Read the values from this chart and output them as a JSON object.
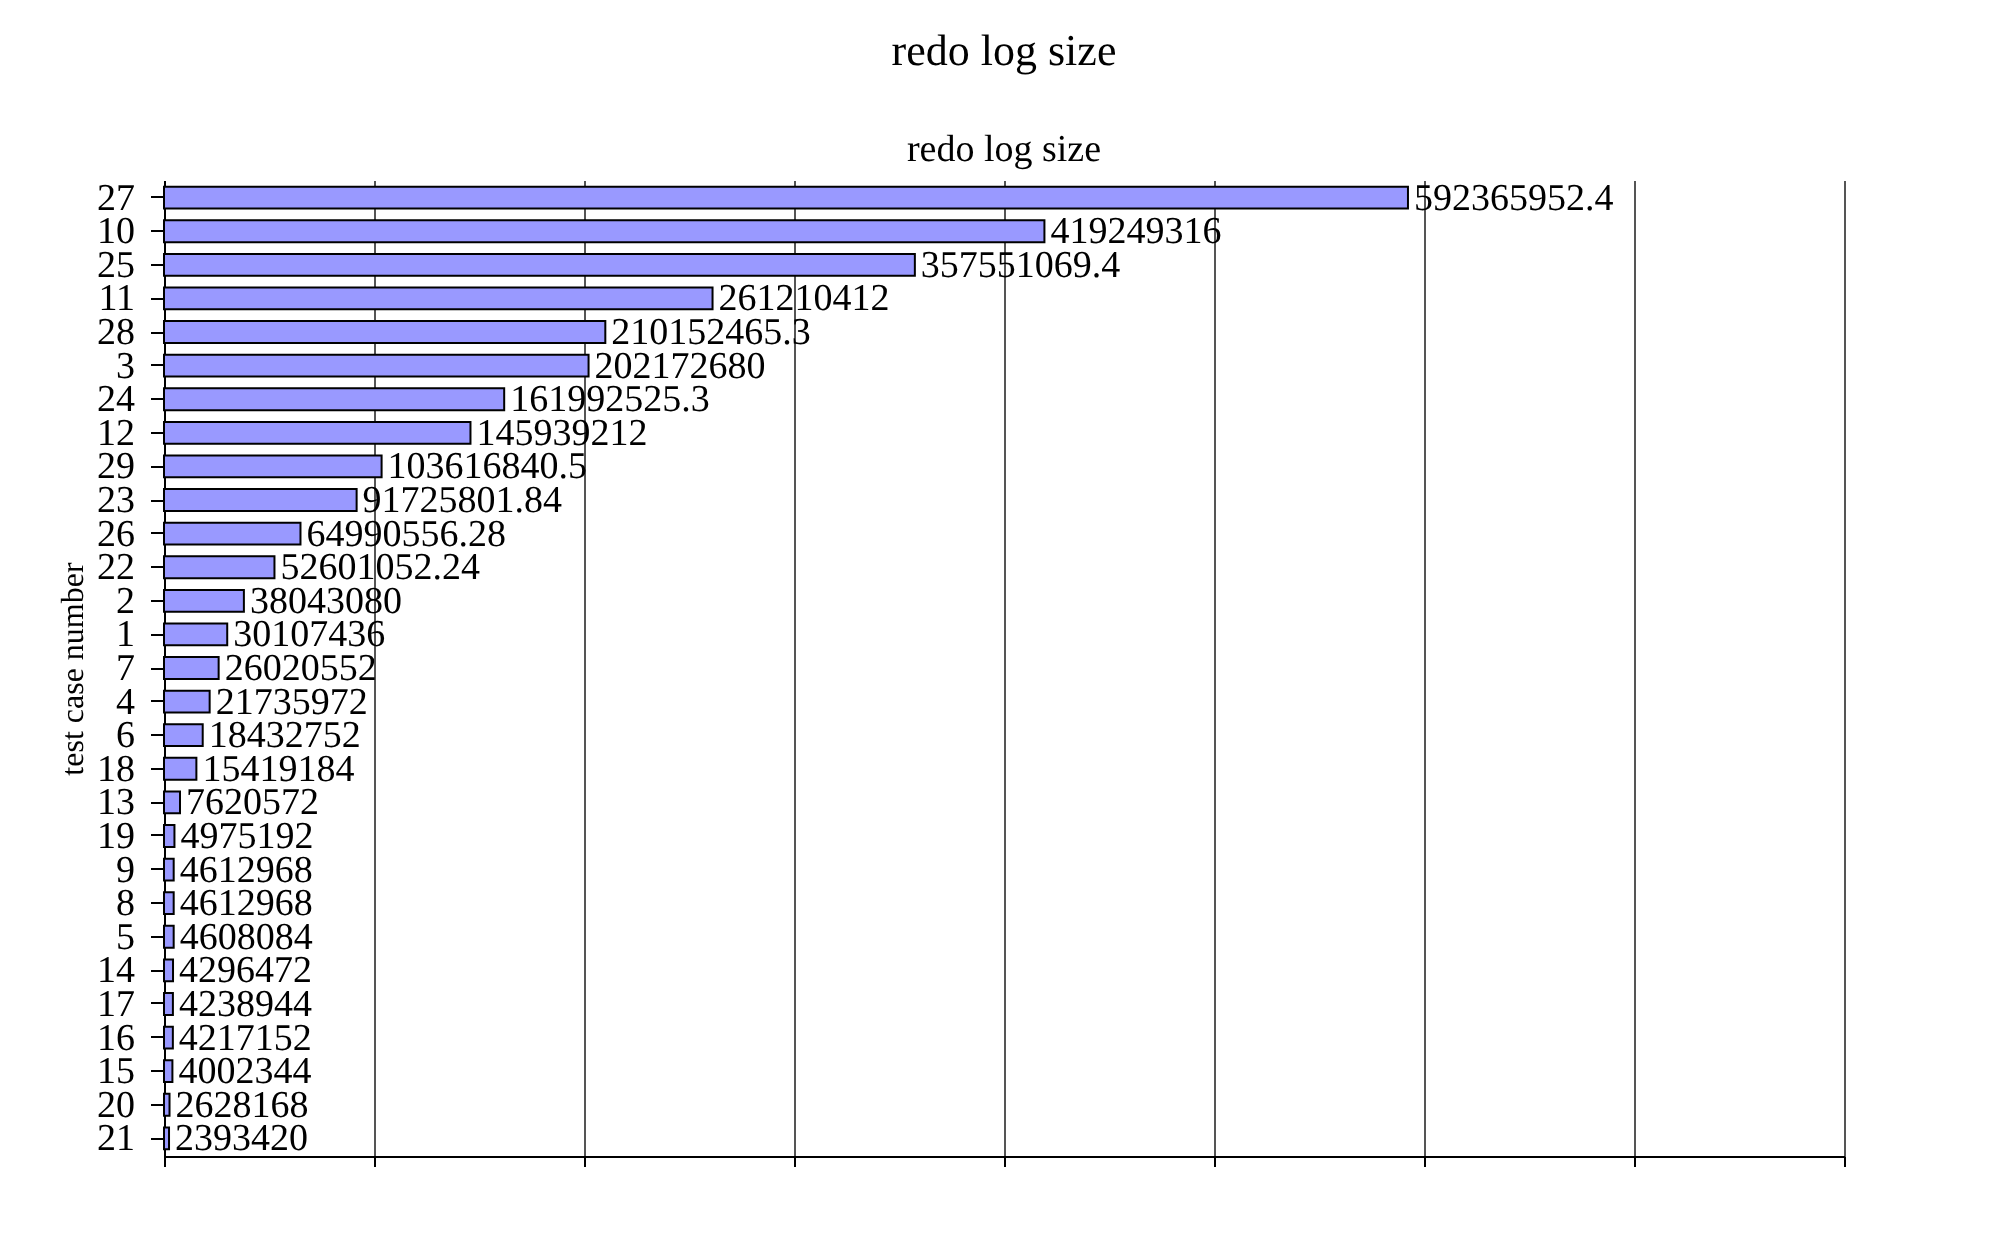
{
  "chart_data": {
    "type": "bar",
    "orientation": "horizontal",
    "title": "redo log size",
    "subtitle": "redo log size",
    "ylabel": "test case number",
    "categories": [
      "27",
      "10",
      "25",
      "11",
      "28",
      "3",
      "24",
      "12",
      "29",
      "23",
      "26",
      "22",
      "2",
      "1",
      "7",
      "4",
      "6",
      "18",
      "13",
      "19",
      "9",
      "8",
      "5",
      "14",
      "17",
      "16",
      "15",
      "20",
      "21"
    ],
    "values": [
      592365952.4,
      419249316,
      357551069.4,
      261210412,
      210152465.3,
      202172680,
      161992525.3,
      145939212,
      103616840.5,
      91725801.84,
      64990556.28,
      52601052.24,
      38043080,
      30107436,
      26020552,
      21735972,
      18432752,
      15419184,
      7620572,
      4975192,
      4612968,
      4612968,
      4608084,
      4296472,
      4238944,
      4217152,
      4002344,
      2628168,
      2393420
    ],
    "color": "#9999ff",
    "data_labels": true,
    "grid": "x",
    "tick_labels": "y",
    "xlim": [
      0,
      800000000
    ],
    "xticks": [
      {
        "value": 0,
        "label": null
      },
      {
        "value": 100000000,
        "label": null
      },
      {
        "value": 200000000,
        "label": null
      },
      {
        "value": 300000000,
        "label": null
      },
      {
        "value": 400000000,
        "label": null
      },
      {
        "value": 500000000,
        "label": null
      },
      {
        "value": 600000000,
        "label": null
      },
      {
        "value": 700000000,
        "label": null
      },
      {
        "value": 800000000,
        "label": null
      }
    ]
  }
}
